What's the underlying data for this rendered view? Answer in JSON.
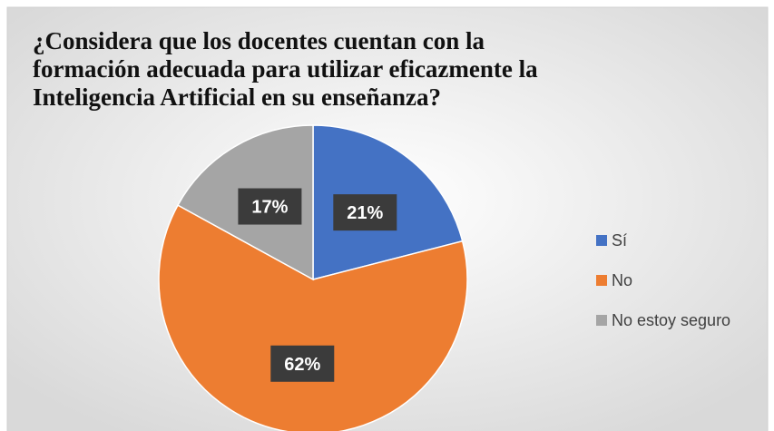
{
  "chart_data": {
    "type": "pie",
    "title": "¿Considera que los docentes cuentan con la formación adecuada para utilizar eficazmente la Inteligencia Artificial en su enseñanza?",
    "categories": [
      "Sí",
      "No",
      "No estoy seguro"
    ],
    "values": [
      21,
      62,
      17
    ],
    "value_labels": [
      "21%",
      "62%",
      "17%"
    ],
    "colors": [
      "#4472c4",
      "#ed7d31",
      "#a5a5a5"
    ],
    "legend": "right"
  }
}
